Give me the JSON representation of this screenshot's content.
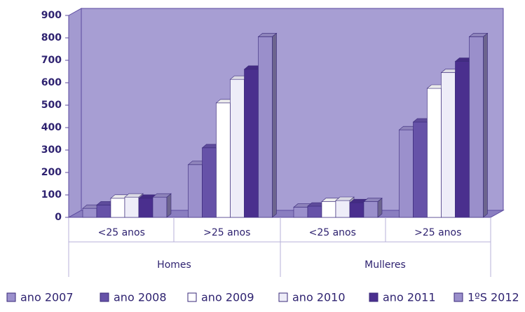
{
  "chart_data": {
    "type": "bar3d",
    "categories": [
      "<25 anos",
      ">25 anos",
      "<25 anos",
      ">25 anos"
    ],
    "group_labels": [
      "Homes",
      "Mulleres"
    ],
    "series": [
      {
        "name": "ano 2007",
        "color": "#9b90cc",
        "values": [
          40,
          235,
          45,
          390
        ]
      },
      {
        "name": "ano 2008",
        "color": "#6652a8",
        "values": [
          55,
          310,
          50,
          425
        ]
      },
      {
        "name": "ano 2009",
        "color": "#ffffff",
        "values": [
          85,
          510,
          70,
          575
        ]
      },
      {
        "name": "ano 2010",
        "color": "#eeedf8",
        "values": [
          90,
          615,
          75,
          645
        ]
      },
      {
        "name": "ano 2011",
        "color": "#4a2f8e",
        "values": [
          85,
          660,
          65,
          695
        ]
      },
      {
        "name": "1ºS 2012",
        "color": "#9a8fcb",
        "values": [
          90,
          805,
          70,
          805
        ]
      }
    ],
    "ylim": [
      0,
      900
    ],
    "yticks": [
      0,
      100,
      200,
      300,
      400,
      500,
      600,
      700,
      800,
      900
    ]
  }
}
